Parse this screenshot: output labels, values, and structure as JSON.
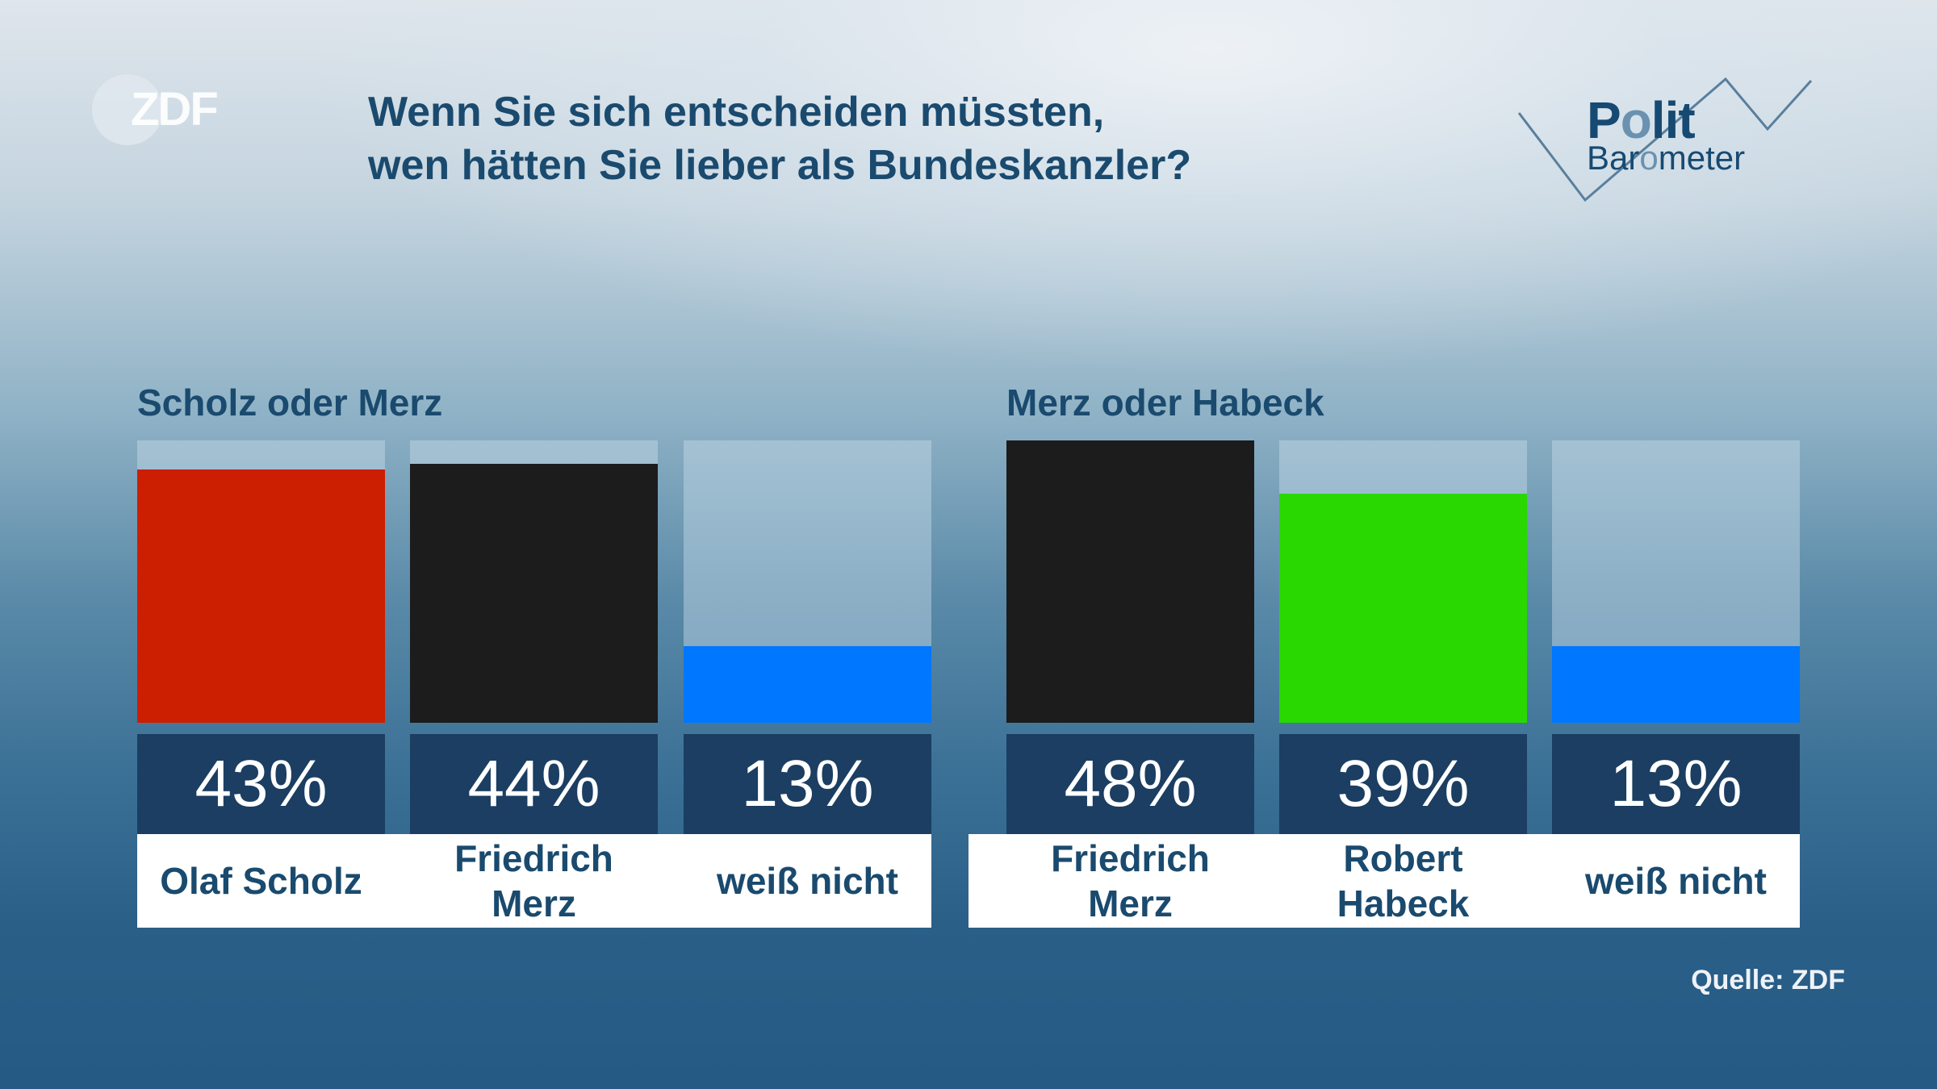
{
  "brand": {
    "logo_text": "ZDF",
    "program_line1_a": "P",
    "program_line1_o": "o",
    "program_line1_b": "lit",
    "program_line2_a": "Bar",
    "program_line2_o": "o",
    "program_line2_b": "meter"
  },
  "title_line1": "Wenn Sie sich entscheiden müssten,",
  "title_line2": "wen hätten Sie lieber als Bundeskanzler?",
  "source": "Quelle: ZDF",
  "colors": {
    "spd": "#cc1e00",
    "cdu": "#1c1c1c",
    "greens": "#28d800",
    "undecided": "#0077ff",
    "value_box": "#1b3e62",
    "text": "#1a4a6e"
  },
  "chart_data": {
    "type": "bar",
    "title": "Wenn Sie sich entscheiden müssten, wen hätten Sie lieber als Bundeskanzler?",
    "unit": "%",
    "scale_max": 48,
    "groups": [
      {
        "title": "Scholz oder Merz",
        "categories": [
          "Olaf Scholz",
          "Friedrich\nMerz",
          "weiß nicht"
        ],
        "values": [
          43,
          44,
          13
        ],
        "value_labels": [
          "43%",
          "44%",
          "13%"
        ],
        "colors": [
          "#cc1e00",
          "#1c1c1c",
          "#0077ff"
        ]
      },
      {
        "title": "Merz oder Habeck",
        "categories": [
          "Friedrich\nMerz",
          "Robert\nHabeck",
          "weiß nicht"
        ],
        "values": [
          48,
          39,
          13
        ],
        "value_labels": [
          "48%",
          "39%",
          "13%"
        ],
        "colors": [
          "#1c1c1c",
          "#28d800",
          "#0077ff"
        ]
      }
    ]
  }
}
